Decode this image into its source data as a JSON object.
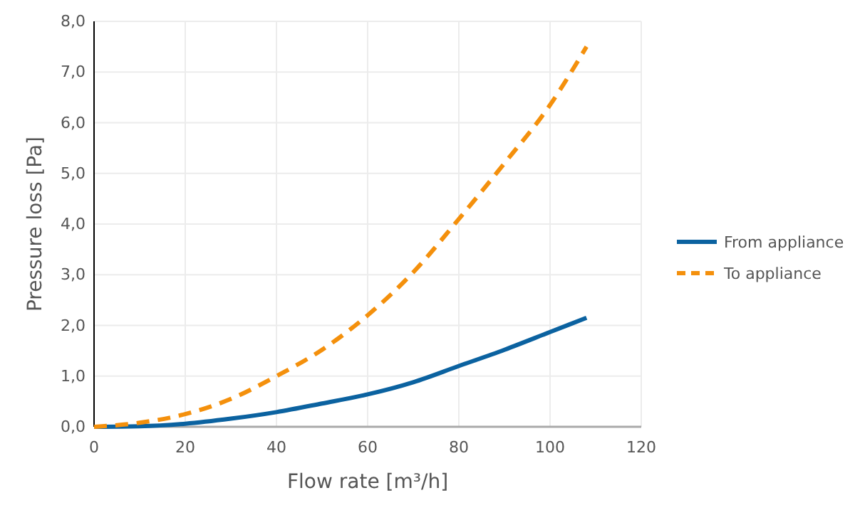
{
  "chart_data": {
    "type": "line",
    "xlabel": "Flow rate [m³/h]",
    "ylabel": "Pressure loss [Pa]",
    "x": [
      0,
      10,
      20,
      30,
      40,
      50,
      60,
      70,
      80,
      90,
      100,
      108
    ],
    "series": [
      {
        "name": "From appliance",
        "color": "#0b62a0",
        "line_style": "solid",
        "values": [
          0,
          0.01,
          0.06,
          0.16,
          0.29,
          0.46,
          0.64,
          0.88,
          1.2,
          1.52,
          1.87,
          2.15
        ]
      },
      {
        "name": "To appliance",
        "color": "#f4900c",
        "line_style": "dashed",
        "values": [
          0,
          0.08,
          0.25,
          0.55,
          1.0,
          1.52,
          2.2,
          3.05,
          4.1,
          5.2,
          6.35,
          7.5
        ]
      }
    ],
    "xlim": [
      0,
      120
    ],
    "xticks": [
      0,
      20,
      40,
      60,
      80,
      100,
      120
    ],
    "ylim": [
      0,
      8
    ],
    "yticks": [
      {
        "value": 0,
        "label": "0,0"
      },
      {
        "value": 1,
        "label": "1,0"
      },
      {
        "value": 2,
        "label": "2,0"
      },
      {
        "value": 3,
        "label": "3,0"
      },
      {
        "value": 4,
        "label": "4,0"
      },
      {
        "value": 5,
        "label": "5,0"
      },
      {
        "value": 6,
        "label": "6,0"
      },
      {
        "value": 7,
        "label": "7,0"
      },
      {
        "value": 8,
        "label": "8,0"
      }
    ],
    "grid": true,
    "legend": "right",
    "marker": "none"
  }
}
